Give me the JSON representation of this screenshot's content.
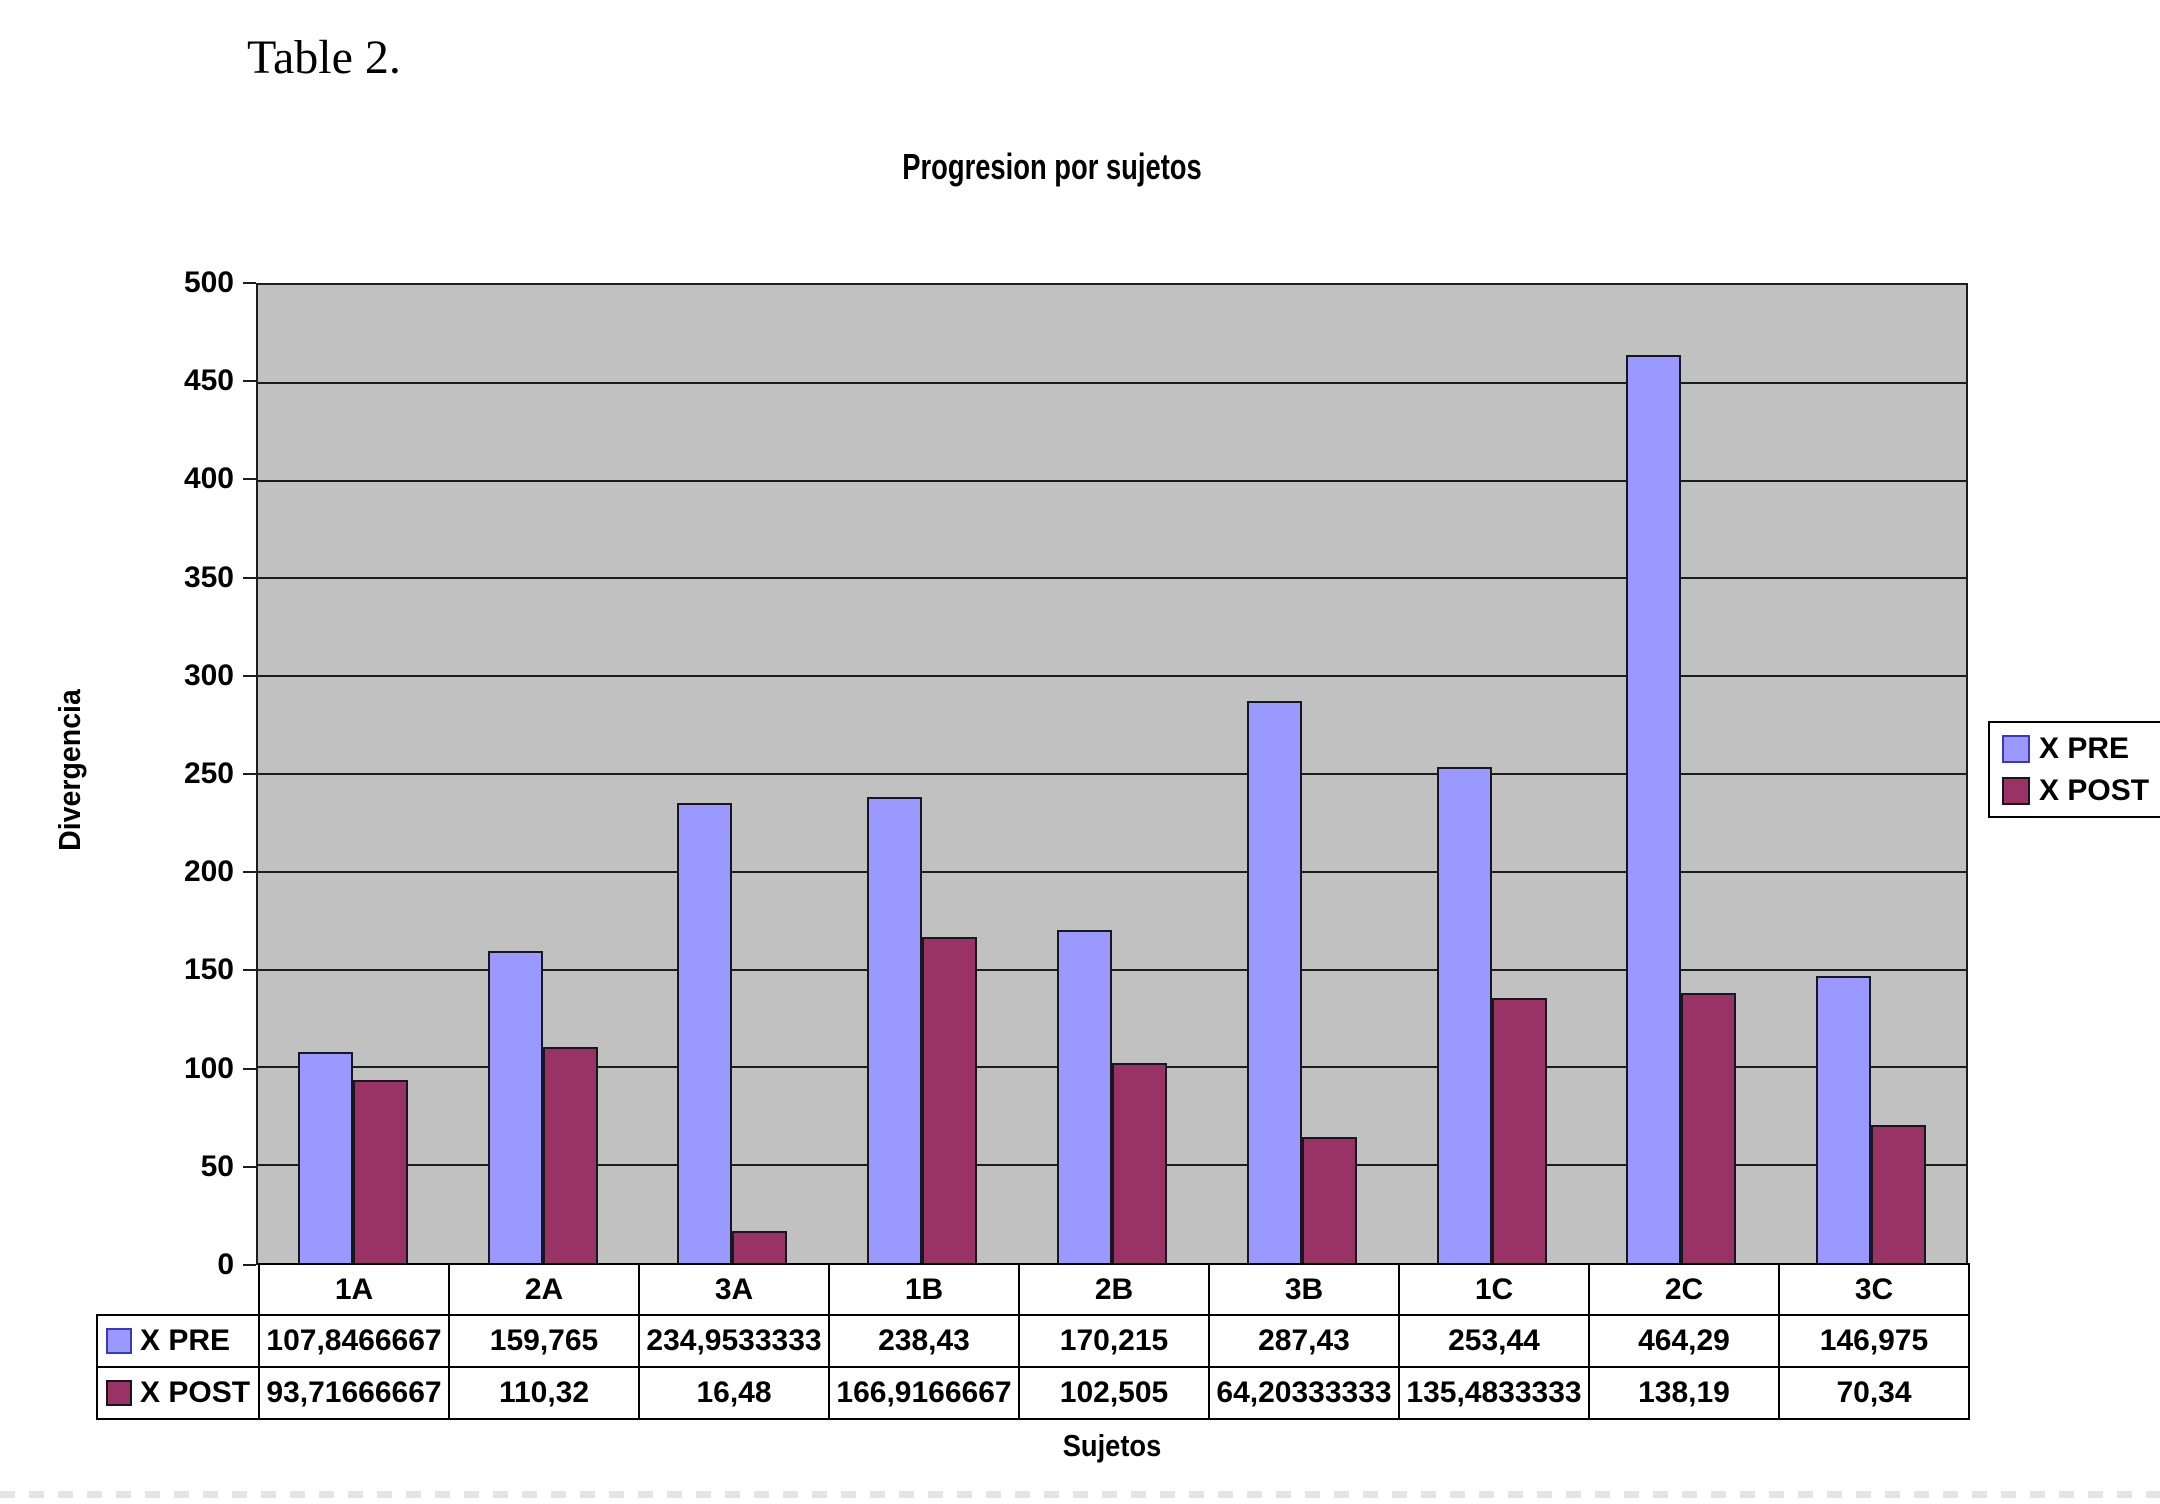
{
  "page_title": "Table 2.",
  "chart_data": {
    "type": "bar",
    "title": "Progresion por sujetos",
    "xlabel": "Sujetos",
    "ylabel": "Divergencia",
    "ylim": [
      0,
      500
    ],
    "yticks": [
      0,
      50,
      100,
      150,
      200,
      250,
      300,
      350,
      400,
      450,
      500
    ],
    "grid": true,
    "legend_position": "right",
    "plot_bg_color": "#C1C1C1",
    "gridline_color": "#1C1C1C",
    "bar_border_color": "#17171E",
    "axis_color": "#1C1C1C",
    "categories": [
      "1A",
      "2A",
      "3A",
      "1B",
      "2B",
      "3B",
      "1C",
      "2C",
      "3C"
    ],
    "series": [
      {
        "name": "X PRE",
        "color": "#9999FF",
        "swatch_border": "#3A3AB8",
        "values": [
          107.8466667,
          159.765,
          234.9533333,
          238.43,
          170.215,
          287.43,
          253.44,
          464.29,
          146.975
        ],
        "display": [
          "107,8466667",
          "159,765",
          "234,9533333",
          "238,43",
          "170,215",
          "287,43",
          "253,44",
          "464,29",
          "146,975"
        ]
      },
      {
        "name": "X POST",
        "color": "#993366",
        "swatch_border": "#16161D",
        "values": [
          93.71666667,
          110.32,
          16.48,
          166.9166667,
          102.505,
          64.20333333,
          135.4833333,
          138.19,
          70.34
        ],
        "display": [
          "93,71666667",
          "110,32",
          "16,48",
          "166,9166667",
          "102,505",
          "64,20333333",
          "135,4833333",
          "138,19",
          "70,34"
        ]
      }
    ]
  }
}
